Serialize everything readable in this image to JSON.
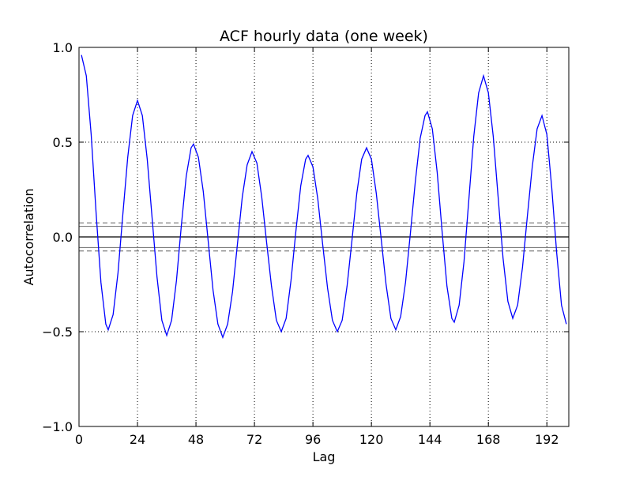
{
  "chart_data": {
    "type": "line",
    "title": "ACF hourly data (one week)",
    "x_label": "Lag",
    "y_label": "Autocorrelation",
    "x": [
      1,
      3,
      5,
      7,
      9,
      11,
      12,
      14,
      16,
      18,
      20,
      22,
      24,
      26,
      28,
      30,
      32,
      34,
      36,
      38,
      40,
      42,
      44,
      46,
      47,
      49,
      51,
      53,
      55,
      57,
      59,
      61,
      63,
      65,
      67,
      69,
      71,
      73,
      75,
      77,
      79,
      81,
      83,
      85,
      87,
      89,
      91,
      93,
      94,
      96,
      98,
      100,
      102,
      104,
      106,
      108,
      110,
      112,
      114,
      116,
      118,
      120,
      122,
      124,
      126,
      128,
      130,
      132,
      134,
      136,
      138,
      140,
      142,
      143,
      145,
      147,
      149,
      151,
      153,
      154,
      156,
      158,
      160,
      162,
      164,
      166,
      168,
      170,
      172,
      174,
      176,
      178,
      180,
      182,
      184,
      186,
      188,
      190,
      192,
      194,
      196,
      198,
      200
    ],
    "series": [
      {
        "color": "#0000ff",
        "values": [
          0.96,
          0.85,
          0.54,
          0.13,
          -0.24,
          -0.46,
          -0.49,
          -0.41,
          -0.19,
          0.12,
          0.42,
          0.64,
          0.72,
          0.64,
          0.41,
          0.1,
          -0.21,
          -0.44,
          -0.52,
          -0.44,
          -0.23,
          0.06,
          0.32,
          0.47,
          0.49,
          0.42,
          0.24,
          -0.02,
          -0.28,
          -0.46,
          -0.53,
          -0.46,
          -0.29,
          -0.04,
          0.21,
          0.38,
          0.45,
          0.39,
          0.21,
          -0.03,
          -0.26,
          -0.44,
          -0.5,
          -0.43,
          -0.23,
          0.03,
          0.27,
          0.41,
          0.43,
          0.37,
          0.2,
          -0.04,
          -0.27,
          -0.44,
          -0.5,
          -0.44,
          -0.26,
          -0.02,
          0.23,
          0.41,
          0.47,
          0.41,
          0.23,
          -0.01,
          -0.25,
          -0.43,
          -0.49,
          -0.42,
          -0.24,
          0.02,
          0.29,
          0.52,
          0.64,
          0.66,
          0.57,
          0.34,
          0.03,
          -0.26,
          -0.43,
          -0.45,
          -0.36,
          -0.13,
          0.2,
          0.53,
          0.76,
          0.85,
          0.76,
          0.53,
          0.21,
          -0.11,
          -0.34,
          -0.43,
          -0.36,
          -0.16,
          0.11,
          0.37,
          0.57,
          0.64,
          0.54,
          0.26,
          -0.08,
          -0.36,
          -0.46
        ]
      }
    ],
    "reference_lines": [
      {
        "value": 0.074,
        "color": "#808080",
        "dashed": true
      },
      {
        "value": 0.056,
        "color": "#808080",
        "dashed": false
      },
      {
        "value": 0,
        "color": "#000000",
        "dashed": false
      },
      {
        "value": -0.056,
        "color": "#808080",
        "dashed": false
      },
      {
        "value": -0.074,
        "color": "#808080",
        "dashed": true
      }
    ],
    "xlim": [
      0,
      201
    ],
    "ylim": [
      -1,
      1
    ],
    "xticks": [
      0,
      24,
      48,
      72,
      96,
      120,
      144,
      168,
      192
    ],
    "yticks": [
      {
        "value": -1,
        "label": "−1.0"
      },
      {
        "value": -0.5,
        "label": "−0.5"
      },
      {
        "value": 0,
        "label": "0.0"
      },
      0.5,
      {
        "value": 1,
        "label": "1.0"
      }
    ],
    "grid": true
  }
}
